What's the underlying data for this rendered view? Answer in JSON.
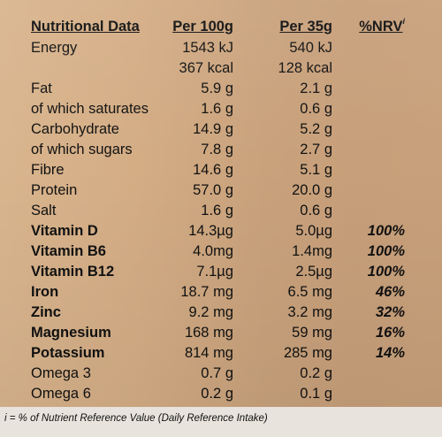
{
  "header": {
    "name": "Nutritional Data",
    "per100": "Per 100g",
    "per35": "Per 35g",
    "nrv": "%NRV",
    "nrv_sup": "i"
  },
  "rows": [
    {
      "name": "Energy",
      "per100": "1543 kJ",
      "per35": "540 kJ",
      "nrv": "",
      "bold": false
    },
    {
      "name": "",
      "per100": "367 kcal",
      "per35": "128 kcal",
      "nrv": "",
      "bold": false
    },
    {
      "name": "Fat",
      "per100": "5.9 g",
      "per35": "2.1 g",
      "nrv": "",
      "bold": false
    },
    {
      "name": "of which saturates",
      "per100": "1.6 g",
      "per35": "0.6 g",
      "nrv": "",
      "bold": false
    },
    {
      "name": "Carbohydrate",
      "per100": "14.9 g",
      "per35": "5.2 g",
      "nrv": "",
      "bold": false
    },
    {
      "name": "of which sugars",
      "per100": "7.8 g",
      "per35": "2.7 g",
      "nrv": "",
      "bold": false
    },
    {
      "name": "Fibre",
      "per100": "14.6 g",
      "per35": "5.1 g",
      "nrv": "",
      "bold": false
    },
    {
      "name": "Protein",
      "per100": "57.0 g",
      "per35": "20.0 g",
      "nrv": "",
      "bold": false
    },
    {
      "name": "Salt",
      "per100": "1.6 g",
      "per35": "0.6 g",
      "nrv": "",
      "bold": false
    },
    {
      "name": "Vitamin D",
      "per100": "14.3µg",
      "per35": "5.0µg",
      "nrv": "100%",
      "bold": true
    },
    {
      "name": "Vitamin B6",
      "per100": "4.0mg",
      "per35": "1.4mg",
      "nrv": "100%",
      "bold": true
    },
    {
      "name": "Vitamin B12",
      "per100": "7.1µg",
      "per35": "2.5µg",
      "nrv": "100%",
      "bold": true
    },
    {
      "name": "Iron",
      "per100": "18.7 mg",
      "per35": "6.5 mg",
      "nrv": "46%",
      "bold": true
    },
    {
      "name": "Zinc",
      "per100": "9.2 mg",
      "per35": "3.2 mg",
      "nrv": "32%",
      "bold": true
    },
    {
      "name": "Magnesium",
      "per100": "168 mg",
      "per35": "59 mg",
      "nrv": "16%",
      "bold": true
    },
    {
      "name": "Potassium",
      "per100": "814 mg",
      "per35": "285 mg",
      "nrv": "14%",
      "bold": true
    },
    {
      "name": "Omega 3",
      "per100": "0.7 g",
      "per35": "0.2 g",
      "nrv": "",
      "bold": false
    },
    {
      "name": "Omega 6",
      "per100": "0.2 g",
      "per35": "0.1 g",
      "nrv": "",
      "bold": false
    }
  ],
  "footnote": "i = % of Nutrient Reference Value (Daily Reference Intake)"
}
